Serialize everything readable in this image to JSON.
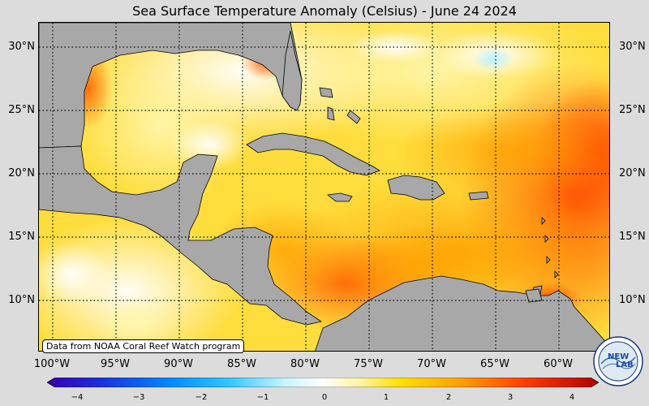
{
  "title": "Sea Surface Temperature Anomaly (Celsius) - June 24 2024",
  "source_note": "Data from NOAA Coral Reef Watch program",
  "lat_labels": [
    "30°N",
    "25°N",
    "20°N",
    "15°N",
    "10°N"
  ],
  "lon_labels": [
    "100°W",
    "95°W",
    "90°W",
    "85°W",
    "80°W",
    "75°W",
    "70°W",
    "65°W",
    "60°W"
  ],
  "colorbar": {
    "min": -4,
    "max": 4,
    "ticks": [
      "−4",
      "−3",
      "−2",
      "−1",
      "0",
      "1",
      "2",
      "3",
      "4"
    ]
  },
  "logo": {
    "text_top": "NEW",
    "text_bottom": "LAB"
  },
  "colors": {
    "land": "#a8a8a8",
    "ocean_base": "#ffe14a",
    "warm": "#ff6a00",
    "hot": "#ff3d00",
    "cool": "#ffffff",
    "cold": "#aeeefc"
  }
}
